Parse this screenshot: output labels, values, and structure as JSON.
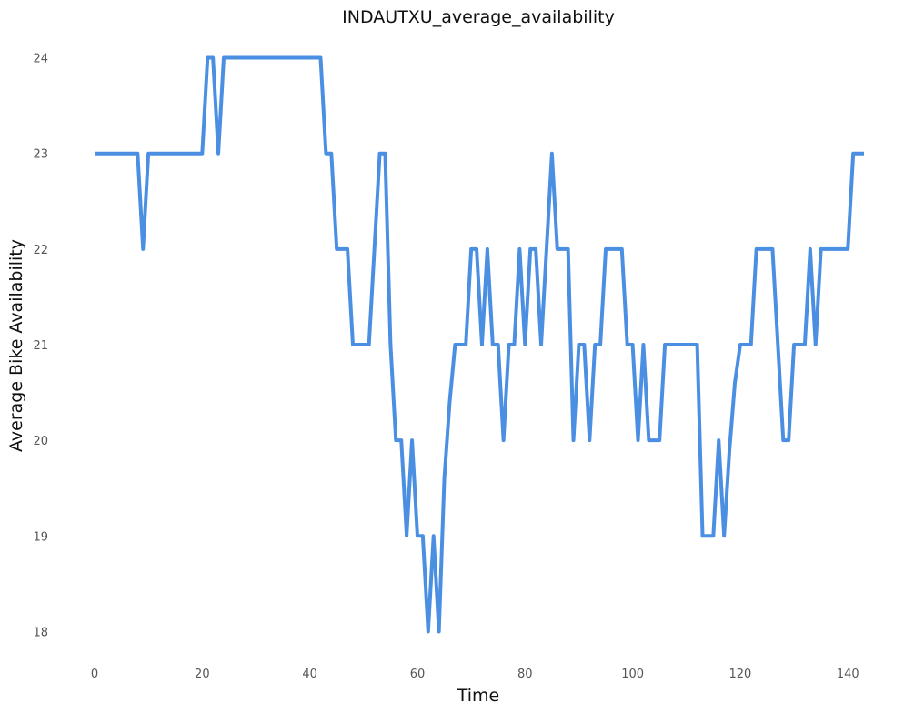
{
  "chart_data": {
    "type": "line",
    "title": "INDAUTXU_average_availability",
    "xlabel": "Time",
    "ylabel": "Average Bike Availability",
    "xlim": [
      0,
      143
    ],
    "ylim": [
      17.7,
      24.3
    ],
    "xticks": [
      0,
      20,
      40,
      60,
      80,
      100,
      120,
      140
    ],
    "yticks": [
      18,
      19,
      20,
      21,
      22,
      23,
      24
    ],
    "grid": false,
    "legend": "none",
    "line_color": "#4a8fe2",
    "series": [
      {
        "values": [
          23,
          23,
          23,
          23,
          23,
          23,
          23,
          23,
          23,
          22,
          23,
          23,
          23,
          23,
          23,
          23,
          23,
          23,
          23,
          23,
          23,
          24,
          24,
          23,
          24,
          24,
          24,
          24,
          24,
          24,
          24,
          24,
          24,
          24,
          24,
          24,
          24,
          24,
          24,
          24,
          24,
          24,
          24,
          23,
          23,
          22,
          22,
          22,
          21,
          21,
          21,
          21,
          22,
          23,
          23,
          21,
          20,
          20,
          19,
          20,
          19,
          19,
          18,
          19,
          18,
          19.6,
          20.4,
          21,
          21,
          21,
          22,
          22,
          21,
          22,
          21,
          21,
          20,
          21,
          21,
          22,
          21,
          22,
          22,
          21,
          22,
          23,
          22,
          22,
          22,
          20,
          21,
          21,
          20,
          21,
          21,
          22,
          22,
          22,
          22,
          21,
          21,
          20,
          21,
          20,
          20,
          20,
          21,
          21,
          21,
          21,
          21,
          21,
          21,
          19,
          19,
          19,
          20,
          19,
          19.9,
          20.6,
          21,
          21,
          21,
          22,
          22,
          22,
          22,
          21,
          20,
          20,
          21,
          21,
          21,
          22,
          21,
          22,
          22,
          22,
          22,
          22,
          22,
          23,
          23,
          23
        ]
      }
    ]
  }
}
